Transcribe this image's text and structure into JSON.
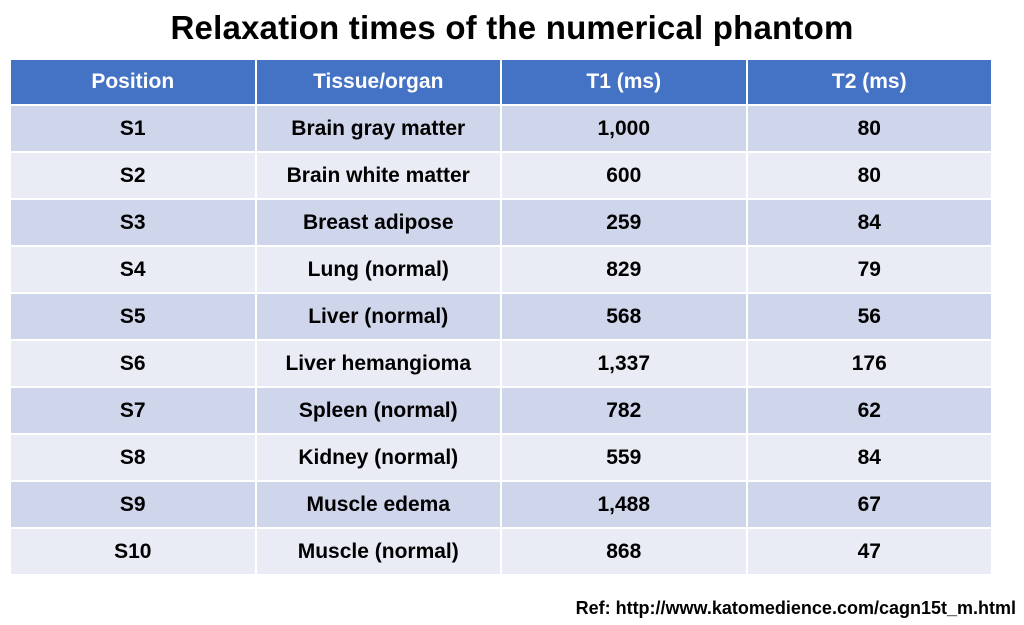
{
  "title": "Relaxation times of the numerical phantom",
  "table": {
    "headers": [
      "Position",
      "Tissue/organ",
      "T1 (ms)",
      "T2 (ms)"
    ],
    "rows": [
      [
        "S1",
        "Brain gray matter",
        "1,000",
        "80"
      ],
      [
        "S2",
        "Brain white matter",
        "600",
        "80"
      ],
      [
        "S3",
        "Breast adipose",
        "259",
        "84"
      ],
      [
        "S4",
        "Lung (normal)",
        "829",
        "79"
      ],
      [
        "S5",
        "Liver (normal)",
        "568",
        "56"
      ],
      [
        "S6",
        "Liver hemangioma",
        "1,337",
        "176"
      ],
      [
        "S7",
        "Spleen (normal)",
        "782",
        "62"
      ],
      [
        "S8",
        "Kidney (normal)",
        "559",
        "84"
      ],
      [
        "S9",
        "Muscle edema",
        "1,488",
        "67"
      ],
      [
        "S10",
        "Muscle (normal)",
        "868",
        "47"
      ]
    ]
  },
  "reference": "Ref: http://www.katomedience.com/cagn15t_m.html",
  "colors": {
    "header_bg": "#4472c4",
    "row_odd_bg": "#cfd5ea",
    "row_even_bg": "#e9ebf5"
  }
}
